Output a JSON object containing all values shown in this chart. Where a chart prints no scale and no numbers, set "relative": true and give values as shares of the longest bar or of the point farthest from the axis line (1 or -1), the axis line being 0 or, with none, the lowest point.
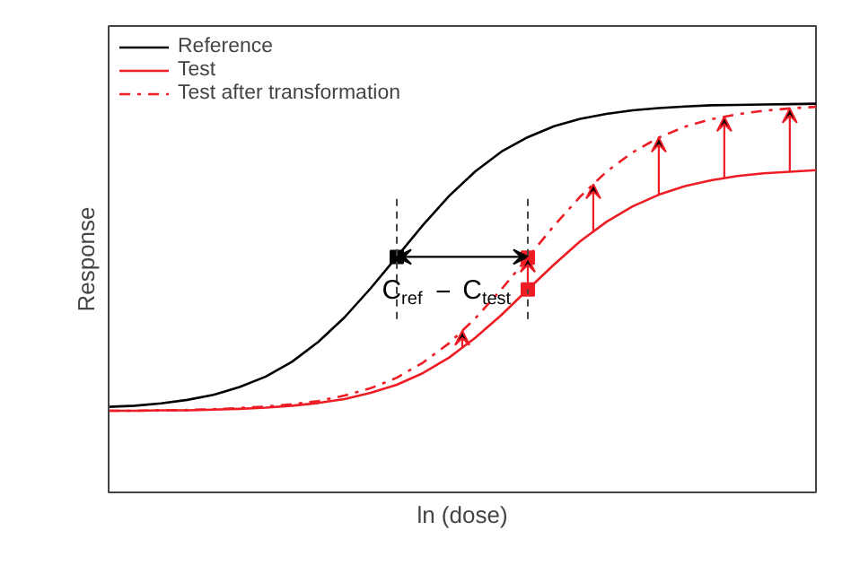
{
  "chart_data": {
    "type": "line",
    "relative": true,
    "xlabel": "ln (dose)",
    "ylabel": "Response",
    "legend": "top left",
    "categories": [
      null,
      null,
      null,
      null,
      null,
      null,
      null,
      null,
      null,
      null,
      null,
      null,
      null,
      null,
      null,
      null,
      null,
      null,
      null,
      null,
      null,
      null,
      null,
      null,
      null,
      null,
      null,
      null
    ],
    "series": [
      {
        "name": "Reference",
        "color": "#000000",
        "line_style": "solid",
        "values": [
          0.22,
          0.223,
          0.229,
          0.238,
          0.251,
          0.271,
          0.298,
          0.336,
          0.387,
          0.45,
          0.525,
          0.606,
          0.688,
          0.763,
          0.826,
          0.877,
          0.914,
          0.942,
          0.961,
          0.974,
          0.983,
          0.989,
          0.993,
          0.996,
          0.997,
          0.998,
          0.999,
          1.0
        ]
      },
      {
        "name": "Test",
        "color": "#ee1c25",
        "line_style": "solid",
        "values": [
          0.21,
          0.21,
          0.211,
          0.211,
          0.213,
          0.215,
          0.218,
          0.223,
          0.23,
          0.24,
          0.256,
          0.277,
          0.307,
          0.347,
          0.398,
          0.457,
          0.522,
          0.586,
          0.646,
          0.696,
          0.736,
          0.766,
          0.788,
          0.803,
          0.814,
          0.821,
          0.825,
          0.829
        ]
      },
      {
        "name": "Test after transformation",
        "color": "#ee1c25",
        "line_style": "dashdot",
        "values": [
          0.21,
          0.21,
          0.211,
          0.212,
          0.214,
          0.217,
          0.221,
          0.227,
          0.235,
          0.249,
          0.268,
          0.295,
          0.334,
          0.384,
          0.448,
          0.523,
          0.604,
          0.686,
          0.761,
          0.825,
          0.875,
          0.913,
          0.941,
          0.96,
          0.973,
          0.982,
          0.988,
          0.992
        ]
      }
    ],
    "annotations": [
      "C$_{ref}$ − C$_{test}$"
    ]
  }
}
